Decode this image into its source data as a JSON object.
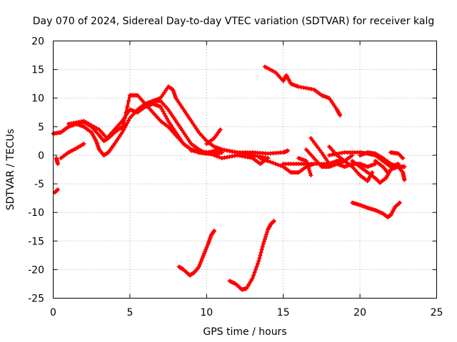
{
  "chart_data": {
    "type": "scatter",
    "title": "Day 070 of 2024, Sidereal Day-to-day VTEC variation (SDTVAR) for receiver kalg",
    "xlabel": "GPS time / hours",
    "ylabel": "SDTVAR / TECUs",
    "xlim": [
      0,
      25
    ],
    "ylim": [
      -25,
      20
    ],
    "xticks": [
      0,
      5,
      10,
      15,
      20,
      25
    ],
    "yticks": [
      -25,
      -20,
      -15,
      -10,
      -5,
      0,
      5,
      10,
      15,
      20
    ],
    "grid": true,
    "marker_color": "#ff0000",
    "series": [
      {
        "name": "arc-1",
        "points": [
          [
            0,
            3.8
          ],
          [
            0.5,
            4
          ],
          [
            1,
            5
          ],
          [
            1.5,
            5.5
          ],
          [
            2,
            5.8
          ],
          [
            2.5,
            5
          ],
          [
            3,
            3.5
          ],
          [
            3.3,
            2.5
          ],
          [
            3.6,
            3
          ],
          [
            4,
            4
          ],
          [
            4.5,
            5
          ]
        ]
      },
      {
        "name": "arc-2",
        "points": [
          [
            0.2,
            -0.5
          ],
          [
            0.3,
            -1.5
          ]
        ]
      },
      {
        "name": "arc-3",
        "points": [
          [
            0.1,
            -6.5
          ],
          [
            0.3,
            -6
          ]
        ]
      },
      {
        "name": "arc-4",
        "points": [
          [
            0.5,
            -0.5
          ],
          [
            1,
            0.5
          ],
          [
            1.5,
            1.2
          ],
          [
            2,
            2
          ]
        ]
      },
      {
        "name": "arc-5",
        "points": [
          [
            0.5,
            4
          ],
          [
            1,
            5
          ],
          [
            1.5,
            5.5
          ],
          [
            2,
            5
          ],
          [
            2.5,
            4
          ],
          [
            2.8,
            2.5
          ],
          [
            3,
            1
          ],
          [
            3.3,
            0
          ],
          [
            3.6,
            0.5
          ],
          [
            4,
            2
          ],
          [
            4.5,
            4
          ],
          [
            5,
            6.5
          ],
          [
            5.5,
            8
          ],
          [
            6,
            9
          ],
          [
            6.5,
            9.5
          ],
          [
            7,
            9.5
          ],
          [
            7.5,
            8
          ],
          [
            8,
            6
          ],
          [
            8.5,
            4
          ],
          [
            9,
            2
          ],
          [
            9.5,
            1
          ],
          [
            10,
            0.3
          ],
          [
            10.5,
            0.2
          ],
          [
            11,
            0.5
          ]
        ]
      },
      {
        "name": "arc-6",
        "points": [
          [
            1,
            5.5
          ],
          [
            2,
            6
          ],
          [
            3,
            4.5
          ],
          [
            3.5,
            3
          ],
          [
            4,
            4.5
          ],
          [
            4.5,
            6
          ],
          [
            5,
            8
          ],
          [
            5.5,
            7.5
          ],
          [
            6,
            8.5
          ],
          [
            6.5,
            9
          ],
          [
            7,
            8.5
          ],
          [
            7.5,
            6
          ],
          [
            8,
            4
          ],
          [
            8.5,
            2
          ],
          [
            9,
            1
          ],
          [
            9.5,
            0.5
          ],
          [
            10,
            0.5
          ]
        ]
      },
      {
        "name": "arc-7",
        "points": [
          [
            4.5,
            4.5
          ],
          [
            5,
            10.5
          ],
          [
            5.5,
            10.5
          ],
          [
            6,
            9
          ],
          [
            6.5,
            7.5
          ],
          [
            7,
            6
          ],
          [
            7.5,
            5
          ],
          [
            8,
            3.5
          ],
          [
            8.5,
            2
          ],
          [
            9,
            1
          ],
          [
            9.5,
            0.5
          ],
          [
            10,
            0.3
          ]
        ]
      },
      {
        "name": "arc-8",
        "points": [
          [
            6.5,
            9.5
          ],
          [
            7,
            10
          ],
          [
            7.5,
            12
          ],
          [
            7.8,
            11.5
          ],
          [
            8,
            10
          ],
          [
            8.5,
            8
          ],
          [
            9,
            6
          ],
          [
            9.5,
            4
          ],
          [
            10,
            2.5
          ],
          [
            10.5,
            1.5
          ],
          [
            11,
            1
          ],
          [
            12,
            0.5
          ],
          [
            13,
            0
          ],
          [
            14,
            -0.5
          ]
        ]
      },
      {
        "name": "arc-9",
        "points": [
          [
            10,
            2
          ],
          [
            10.5,
            3
          ],
          [
            10.9,
            4.5
          ]
        ]
      },
      {
        "name": "arc-10",
        "points": [
          [
            9,
            0.8
          ],
          [
            10,
            0.5
          ],
          [
            11,
            1
          ],
          [
            12,
            0.5
          ],
          [
            13,
            0.5
          ],
          [
            14,
            0.3
          ],
          [
            15,
            0.5
          ],
          [
            15.3,
            0.8
          ]
        ]
      },
      {
        "name": "arc-11",
        "points": [
          [
            10,
            0.5
          ],
          [
            11,
            -0.5
          ],
          [
            12,
            0
          ],
          [
            13,
            -0.5
          ],
          [
            13.5,
            -1.5
          ],
          [
            14,
            -0.5
          ]
        ]
      },
      {
        "name": "arc-12",
        "points": [
          [
            13.5,
            -0.5
          ],
          [
            14,
            -1
          ],
          [
            15,
            -2
          ],
          [
            15.5,
            -3
          ],
          [
            16,
            -3
          ],
          [
            16.5,
            -2
          ],
          [
            17,
            -1.5
          ]
        ]
      },
      {
        "name": "arc-13",
        "points": [
          [
            13.8,
            15.5
          ],
          [
            14.5,
            14.5
          ],
          [
            15,
            13
          ],
          [
            15.2,
            14
          ],
          [
            15.5,
            12.5
          ],
          [
            16,
            12
          ],
          [
            17,
            11.5
          ],
          [
            17.5,
            10.5
          ],
          [
            18,
            10
          ],
          [
            18.5,
            8
          ],
          [
            18.7,
            7
          ]
        ]
      },
      {
        "name": "arc-14",
        "points": [
          [
            15,
            -1.5
          ],
          [
            16,
            -1.5
          ],
          [
            17,
            -1.5
          ],
          [
            18,
            -1.5
          ],
          [
            18.5,
            -1
          ],
          [
            19,
            -1
          ],
          [
            19.5,
            0
          ]
        ]
      },
      {
        "name": "arc-15",
        "points": [
          [
            16.5,
            1
          ],
          [
            17,
            -0.5
          ],
          [
            17.5,
            -2
          ],
          [
            18,
            -2
          ],
          [
            18.5,
            -1.5
          ],
          [
            19,
            -1
          ]
        ]
      },
      {
        "name": "arc-16",
        "points": [
          [
            16,
            -0.5
          ],
          [
            16.5,
            -1
          ],
          [
            16.8,
            -3.5
          ]
        ]
      },
      {
        "name": "arc-17",
        "points": [
          [
            16.8,
            3
          ],
          [
            17.5,
            0.5
          ],
          [
            18,
            -1.5
          ],
          [
            18.5,
            -1.5
          ],
          [
            19,
            -2
          ],
          [
            19.5,
            -1.5
          ],
          [
            20,
            -1.5
          ],
          [
            20.5,
            -2
          ],
          [
            21,
            -1.5
          ]
        ]
      },
      {
        "name": "arc-18",
        "points": [
          [
            18,
            1.5
          ],
          [
            18.5,
            0
          ],
          [
            19,
            -1
          ],
          [
            19.5,
            -2
          ],
          [
            20,
            -3.5
          ],
          [
            20.5,
            -4.5
          ],
          [
            20.8,
            -3
          ]
        ]
      },
      {
        "name": "arc-19",
        "points": [
          [
            18,
            0
          ],
          [
            19,
            0.5
          ],
          [
            20,
            0.5
          ],
          [
            20.5,
            0.3
          ],
          [
            21,
            0
          ],
          [
            21.5,
            -1
          ],
          [
            22,
            -2
          ],
          [
            22.5,
            -1.5
          ]
        ]
      },
      {
        "name": "arc-20",
        "points": [
          [
            19.5,
            -1
          ],
          [
            20,
            -2
          ],
          [
            20.5,
            -3
          ],
          [
            21,
            -4
          ],
          [
            21.3,
            -4.8
          ],
          [
            21.7,
            -4
          ],
          [
            22,
            -2.5
          ],
          [
            22.5,
            -2
          ],
          [
            22.8,
            -3
          ],
          [
            22.9,
            -4.3
          ]
        ]
      },
      {
        "name": "arc-21",
        "points": [
          [
            20,
            0
          ],
          [
            20.5,
            0.5
          ],
          [
            21,
            0.3
          ],
          [
            21.5,
            -0.5
          ],
          [
            22,
            -1.5
          ],
          [
            22.5,
            -2
          ],
          [
            22.9,
            -2
          ]
        ]
      },
      {
        "name": "arc-22",
        "points": [
          [
            21,
            -1
          ],
          [
            21.5,
            -2
          ],
          [
            21.8,
            -3
          ]
        ]
      },
      {
        "name": "arc-23",
        "points": [
          [
            22,
            0.5
          ],
          [
            22.5,
            0.3
          ],
          [
            22.8,
            -0.5
          ]
        ]
      },
      {
        "name": "arc-24",
        "points": [
          [
            19.5,
            -8.3
          ],
          [
            20,
            -8.7
          ],
          [
            20.5,
            -9.2
          ],
          [
            21,
            -9.6
          ],
          [
            21.5,
            -10.2
          ],
          [
            21.8,
            -10.8
          ],
          [
            22,
            -10.5
          ],
          [
            22.3,
            -9
          ],
          [
            22.6,
            -8.3
          ]
        ]
      },
      {
        "name": "arc-25",
        "points": [
          [
            8.2,
            -19.5
          ],
          [
            8.5,
            -20
          ],
          [
            8.9,
            -21
          ],
          [
            9.2,
            -20.5
          ],
          [
            9.5,
            -19.5
          ],
          [
            9.8,
            -17.5
          ],
          [
            10.1,
            -15.5
          ],
          [
            10.3,
            -14
          ],
          [
            10.5,
            -13.2
          ]
        ]
      },
      {
        "name": "arc-26",
        "points": [
          [
            11.5,
            -22
          ],
          [
            11.9,
            -22.5
          ],
          [
            12.3,
            -23.5
          ],
          [
            12.6,
            -23.3
          ],
          [
            13,
            -21.5
          ],
          [
            13.4,
            -18.5
          ],
          [
            13.7,
            -15.5
          ],
          [
            14,
            -13
          ],
          [
            14.2,
            -12
          ],
          [
            14.4,
            -11.5
          ]
        ]
      }
    ]
  }
}
